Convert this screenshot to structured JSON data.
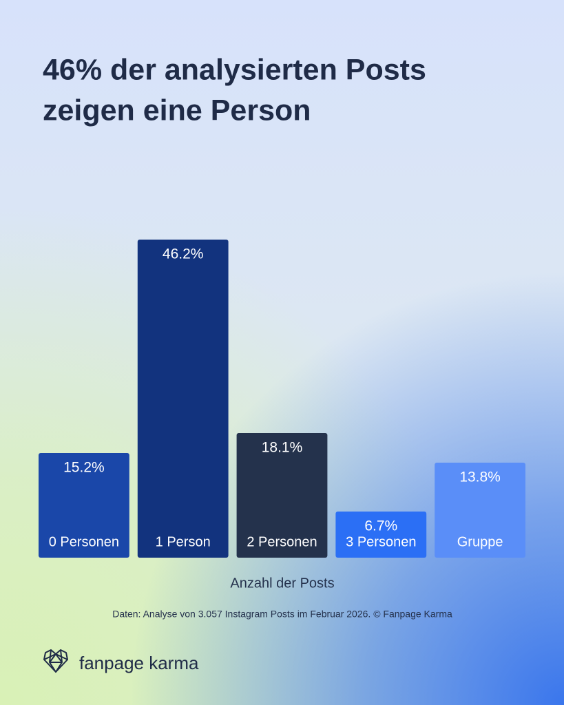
{
  "chart_data": {
    "type": "bar",
    "title": [
      "46% der analysierten Posts",
      "zeigen eine Person"
    ],
    "categories": [
      "0 Personen",
      "1 Person",
      "2 Personen",
      "3 Personen",
      "Gruppe"
    ],
    "values": [
      15.2,
      46.2,
      18.1,
      6.7,
      13.8
    ],
    "value_labels": [
      "15.2%",
      "46.2%",
      "18.1%",
      "6.7%",
      "13.8%"
    ],
    "colors": [
      "#1a47a9",
      "#12337e",
      "#24324c",
      "#2b6ff5",
      "#5a8ef8"
    ],
    "ylim": [
      0,
      50
    ],
    "x_label": "Anzahl der Posts",
    "source": "Daten: Analyse von 3.057 Instagram Posts im Februar 2026. © Fanpage Karma",
    "brand": "fanpage karma"
  }
}
